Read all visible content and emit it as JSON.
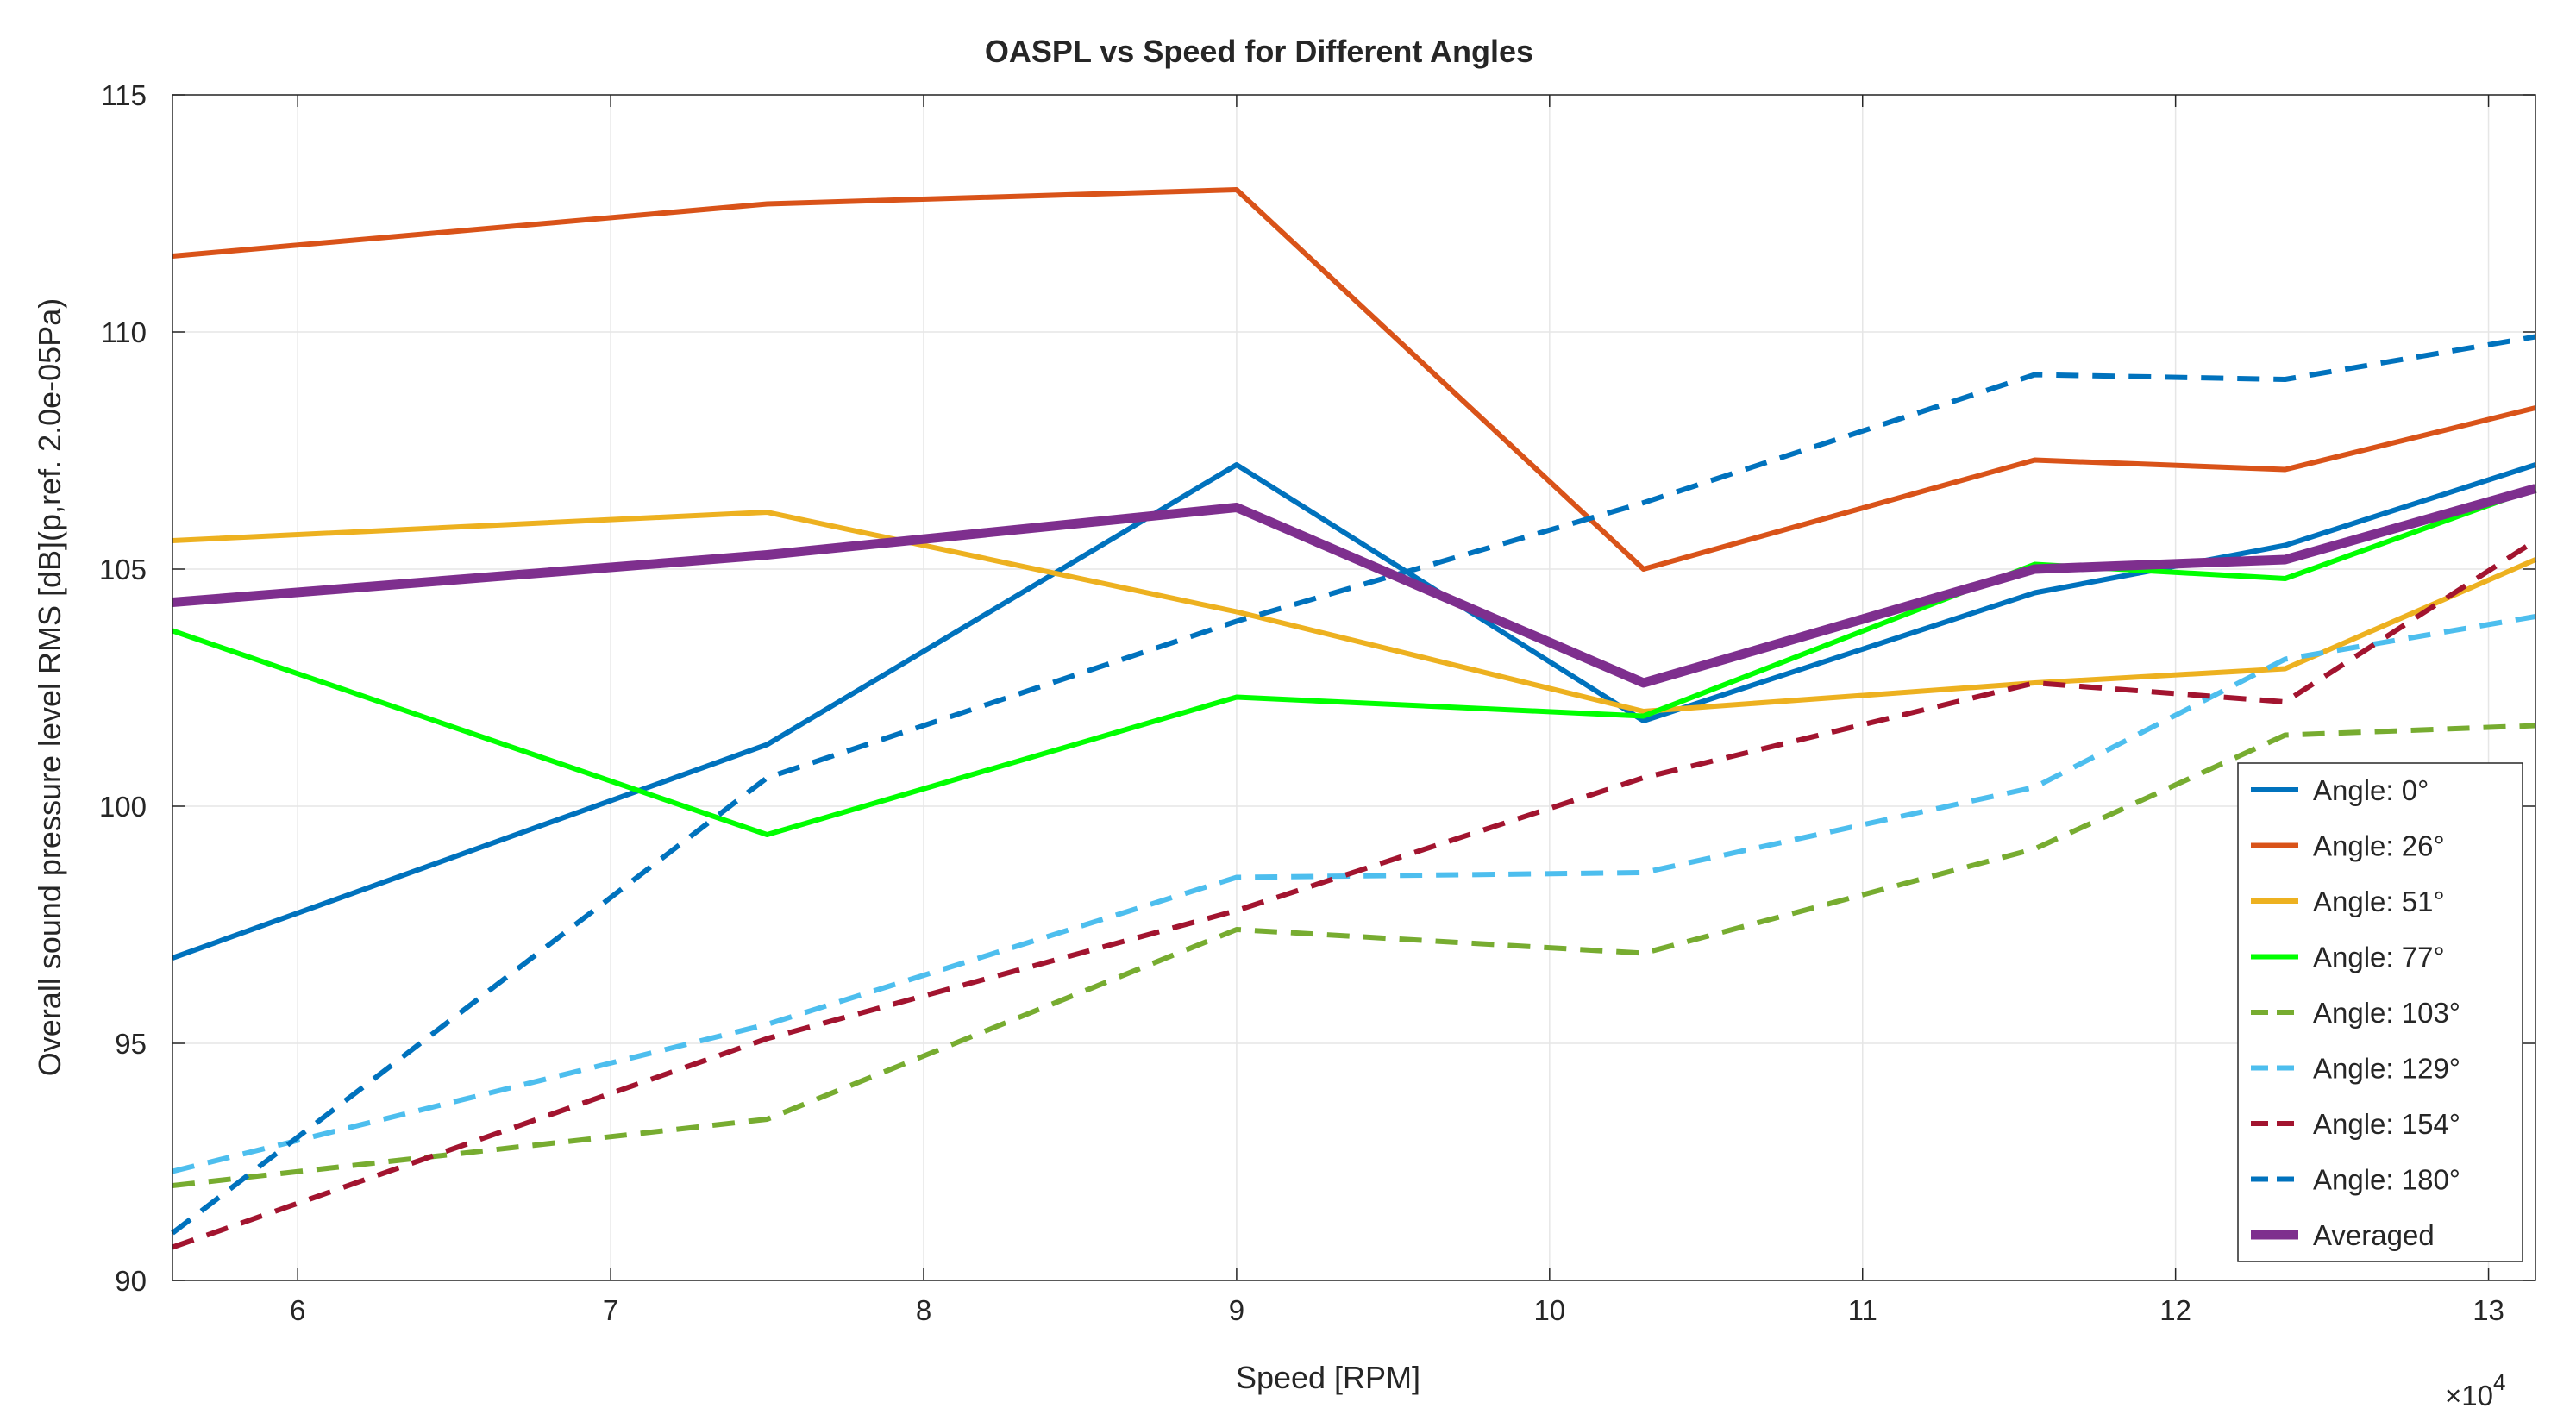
{
  "chart_data": {
    "type": "line",
    "title": "OASPL vs Speed for Different Angles",
    "xlabel": "Speed [RPM]",
    "ylabel": "Overall sound pressure level RMS [dB](p,ref. 2.0e-05Pa)",
    "x_exponent_label": "×10",
    "x_exponent_power": "4",
    "xlim": [
      5.6,
      13.15
    ],
    "ylim": [
      90,
      115
    ],
    "grid": true,
    "legend_location": "right",
    "x_ticks": [
      6,
      7,
      8,
      9,
      10,
      11,
      12,
      13
    ],
    "x_tick_labels": [
      "6",
      "7",
      "8",
      "9",
      "10",
      "11",
      "12",
      "13"
    ],
    "y_ticks": [
      90,
      95,
      100,
      105,
      110,
      115
    ],
    "y_tick_labels": [
      "90",
      "95",
      "100",
      "105",
      "110",
      "115"
    ],
    "x": [
      5.6,
      7.5,
      9.0,
      10.3,
      11.55,
      12.35,
      13.15
    ],
    "series": [
      {
        "name": "Angle: 0°",
        "color": "#0072BD",
        "dash": "solid",
        "width": 6,
        "values": [
          96.8,
          101.3,
          107.2,
          101.8,
          104.5,
          105.5,
          107.2
        ]
      },
      {
        "name": "Angle: 26°",
        "color": "#D95319",
        "dash": "solid",
        "width": 6,
        "values": [
          111.6,
          112.7,
          113.0,
          105.0,
          107.3,
          107.1,
          108.4
        ]
      },
      {
        "name": "Angle: 51°",
        "color": "#EDB120",
        "dash": "solid",
        "width": 6,
        "values": [
          105.6,
          106.2,
          104.1,
          102.0,
          102.6,
          102.9,
          105.2
        ]
      },
      {
        "name": "Angle: 77°",
        "color": "#00FF00",
        "dash": "solid",
        "width": 6,
        "values": [
          103.7,
          99.4,
          102.3,
          101.9,
          105.1,
          104.8,
          106.7
        ]
      },
      {
        "name": "Angle: 103°",
        "color": "#77AC30",
        "dash": "dashed",
        "width": 6,
        "values": [
          92.0,
          93.4,
          97.4,
          96.9,
          99.1,
          101.5,
          101.7
        ]
      },
      {
        "name": "Angle: 129°",
        "color": "#4DBEEE",
        "dash": "dashed",
        "width": 6,
        "values": [
          92.3,
          95.4,
          98.5,
          98.6,
          100.4,
          103.1,
          104.0
        ]
      },
      {
        "name": "Angle: 154°",
        "color": "#A2142F",
        "dash": "dashed",
        "width": 6,
        "values": [
          90.7,
          95.1,
          97.8,
          100.6,
          102.6,
          102.2,
          105.6
        ]
      },
      {
        "name": "Angle: 180°",
        "color": "#0072BD",
        "dash": "dashed",
        "width": 6,
        "values": [
          91.0,
          100.6,
          103.9,
          106.4,
          109.1,
          109.0,
          109.9
        ]
      },
      {
        "name": "Averaged",
        "color": "#7E2F8E",
        "dash": "solid",
        "width": 11,
        "values": [
          104.3,
          105.3,
          106.3,
          102.6,
          105.0,
          105.2,
          106.7
        ]
      }
    ]
  }
}
